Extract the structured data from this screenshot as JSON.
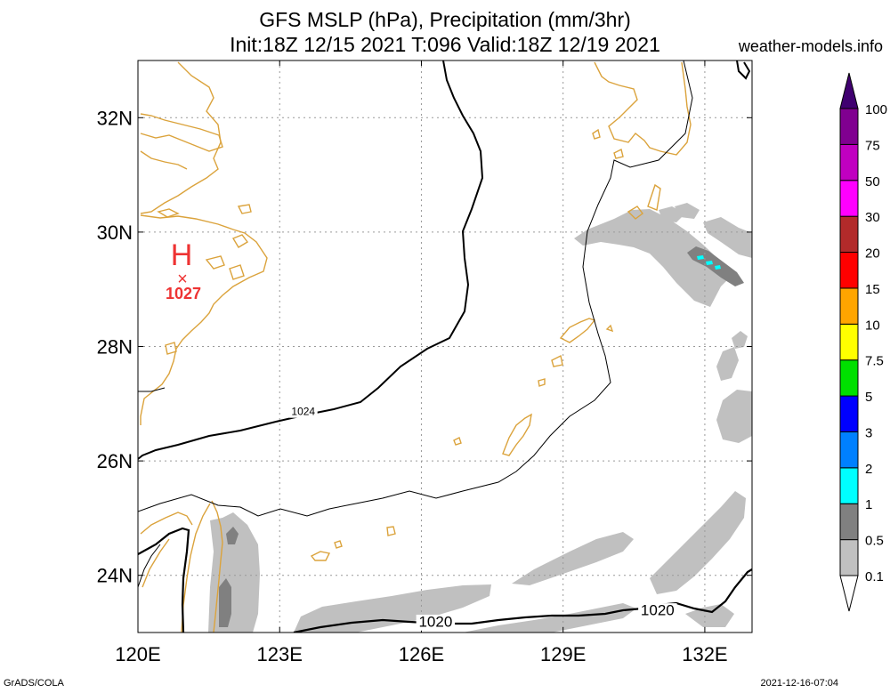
{
  "header": {
    "title_line1": "GFS MSLP (hPa), Precipitation (mm/3hr)",
    "title_line2": "Init:18Z 12/15 2021 T:096 Valid:18Z 12/19 2021",
    "site": "weather-models.info"
  },
  "footer": {
    "software": "GrADS/COLA",
    "timestamp": "2021-12-16-07:04"
  },
  "map": {
    "lon_range": [
      120,
      133
    ],
    "lat_range": [
      23,
      33
    ],
    "lon_ticks": [
      {
        "value": 120,
        "label": "120E"
      },
      {
        "value": 123,
        "label": "123E"
      },
      {
        "value": 126,
        "label": "126E"
      },
      {
        "value": 129,
        "label": "129E"
      },
      {
        "value": 132,
        "label": "132E"
      }
    ],
    "lat_ticks": [
      {
        "value": 24,
        "label": "24N"
      },
      {
        "value": 26,
        "label": "26N"
      },
      {
        "value": 28,
        "label": "28N"
      },
      {
        "value": 30,
        "label": "30N"
      },
      {
        "value": 32,
        "label": "32N"
      }
    ],
    "grid": "dotted",
    "high_pressure": {
      "symbol": "H",
      "marker": "×",
      "value": "1027",
      "lon": 120.95,
      "lat": 29.3,
      "color": "#ee3333"
    },
    "isobar_labels": [
      {
        "text": "1024",
        "lon": 123.5,
        "lat": 26.8
      },
      {
        "text": "1020",
        "lon": 126.3,
        "lat": 23.1
      },
      {
        "text": "1020",
        "lon": 131.0,
        "lat": 23.3
      }
    ],
    "coast_color": "#dba33c"
  },
  "legend": {
    "levels": [
      "0.1",
      "0.5",
      "1",
      "2",
      "3",
      "5",
      "7.5",
      "10",
      "15",
      "20",
      "30",
      "50",
      "75",
      "100"
    ],
    "colors": [
      "#ffffff",
      "#c0c0c0",
      "#808080",
      "#00ffff",
      "#0080ff",
      "#0000ff",
      "#00e000",
      "#ffff00",
      "#ffa500",
      "#ff0000",
      "#b22a2a",
      "#ff00ff",
      "#c000c0",
      "#800090",
      "#400070"
    ]
  }
}
